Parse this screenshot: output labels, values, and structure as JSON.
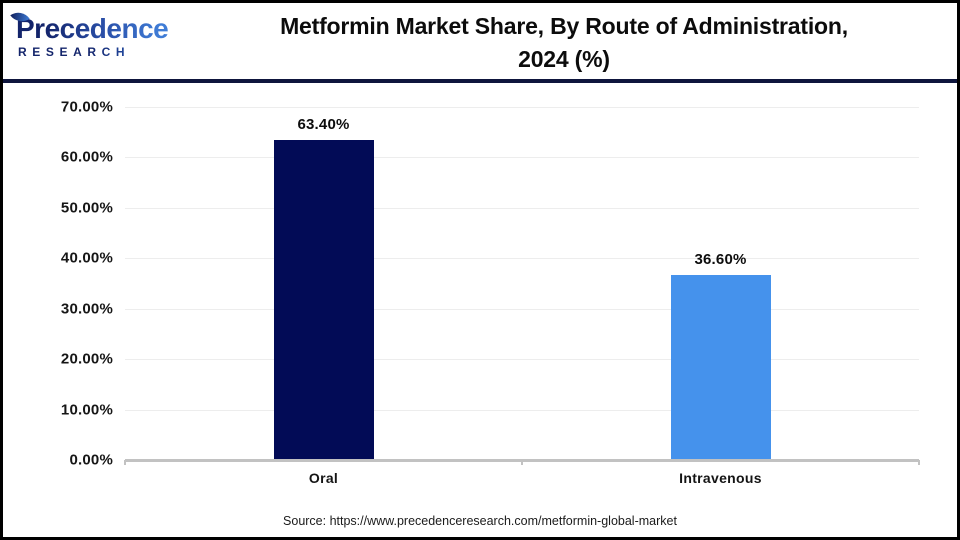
{
  "header": {
    "logo": {
      "name": "Precedence",
      "subtitle": "RESEARCH"
    },
    "title_line1": "Metformin Market Share, By Route of Administration,",
    "title_line2": "2024 (%)"
  },
  "chart_data": {
    "type": "bar",
    "title": "Metformin Market Share, By Route of Administration, 2024 (%)",
    "categories": [
      "Oral",
      "Intravenous"
    ],
    "values": [
      63.4,
      36.6
    ],
    "value_labels": [
      "63.40%",
      "36.60%"
    ],
    "bar_colors": [
      "#020b56",
      "#4592ec"
    ],
    "xlabel": "",
    "ylabel": "",
    "ylim": [
      0,
      70
    ],
    "yticks": [
      "70.00%",
      "60.00%",
      "50.00%",
      "40.00%",
      "30.00%",
      "20.00%",
      "10.00%",
      "0.00%"
    ],
    "grid": "horizontal",
    "legend_position": "none"
  },
  "footer": {
    "source": "Source: https://www.precedenceresearch.com/metformin-global-market"
  },
  "colors": {
    "bar_oral": "#020b56",
    "bar_intravenous": "#4592ec",
    "header_rule": "#0e153d",
    "gridline": "#ededed",
    "axis_line": "#c2c2c2",
    "logo_navy": "#13246b",
    "logo_blue": "#3f7cd6",
    "text": "#0c0c0c"
  }
}
